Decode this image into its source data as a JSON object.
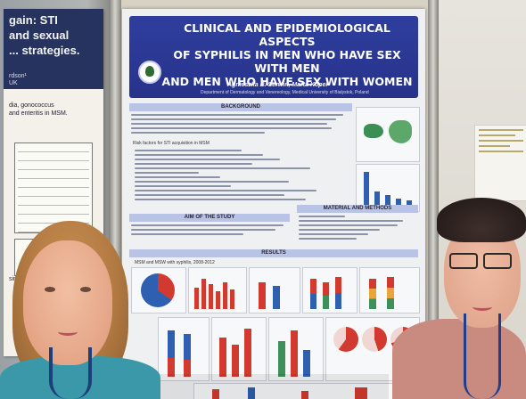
{
  "left_poster": {
    "title": "gain: STI\nand sexual\n... strategies.",
    "authors": "rdson¹\nUK",
    "intro": "dia, gonococcus\nand enteritis in MSM.",
    "foot": "sing ambi..."
  },
  "main_poster": {
    "title": "CLINICAL AND EPIDEMIOLOGICAL ASPECTS\nOF SYPHILIS IN MEN WHO HAVE SEX WITH MEN\nAND MEN WHO HAVE SEX WITH WOMEN",
    "authors": "Agnieszka B. Serwin, Marta Koper",
    "affiliation": "Department of Dermatology and Venereology, Medical University of Bialystok, Poland",
    "sections": {
      "background": "BACKGROUND",
      "aim": "AIM OF THE STUDY",
      "materials": "MATERIAL AND METHODS",
      "results": "RESULTS"
    },
    "risk_factors_heading": "Risk factors for STI acquisition in MSM",
    "chart_label_1": "MSM and MSW with syphilis, 2008-2012"
  },
  "colors": {
    "poster_header": "#2f3e9e",
    "section_band": "#b9c3e6",
    "bar_blue": "#2f5fb0",
    "bar_red": "#d23a2f",
    "bar_green": "#3f8f5a"
  }
}
